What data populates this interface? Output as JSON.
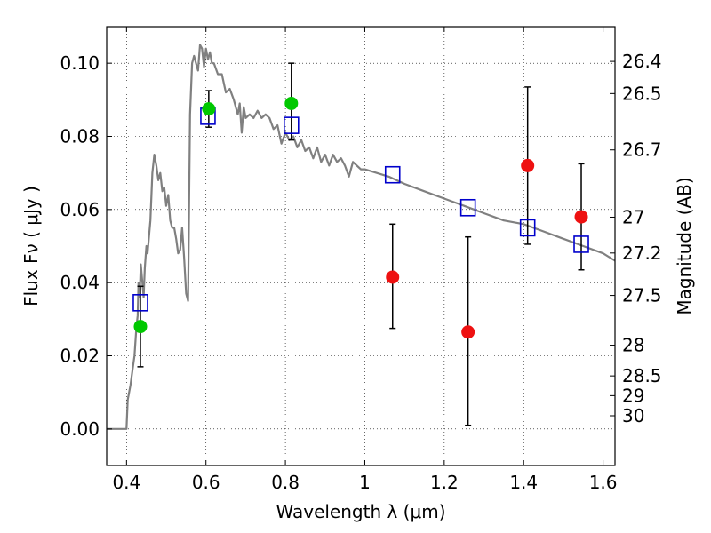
{
  "chart_data": {
    "type": "scatter",
    "xlabel": "Wavelength  λ (μm)",
    "ylabel": "Flux  Fν  ( μJy )",
    "ylabel_right": "Magnitude (AB)",
    "xlim": [
      0.35,
      1.63
    ],
    "ylim": [
      -0.01,
      0.11
    ],
    "grid": true,
    "x_ticks": [
      0.4,
      0.6,
      0.8,
      1.0,
      1.2,
      1.4,
      1.6
    ],
    "x_tick_labels": [
      "0.4",
      "0.6",
      "0.8",
      "1",
      "1.2",
      "1.4",
      "1.6"
    ],
    "y_ticks": [
      0.0,
      0.02,
      0.04,
      0.06,
      0.08,
      0.1
    ],
    "y_tick_labels": [
      "0.00",
      "0.02",
      "0.04",
      "0.06",
      "0.08",
      "0.10"
    ],
    "right_ticks": [
      {
        "label": "26.4",
        "flux": 0.1005
      },
      {
        "label": "26.5",
        "flux": 0.0917
      },
      {
        "label": "26.7",
        "flux": 0.0763
      },
      {
        "label": "27",
        "flux": 0.0579
      },
      {
        "label": "27.2",
        "flux": 0.0481
      },
      {
        "label": "27.5",
        "flux": 0.0365
      },
      {
        "label": "28",
        "flux": 0.0229
      },
      {
        "label": "28.5",
        "flux": 0.0145
      },
      {
        "label": "29",
        "flux": 0.0091
      },
      {
        "label": "30",
        "flux": 0.0036
      }
    ],
    "series": [
      {
        "kind": "line",
        "color": "#808080",
        "points": [
          [
            0.35,
            0.0
          ],
          [
            0.4,
            0.0
          ],
          [
            0.403,
            0.008
          ],
          [
            0.41,
            0.012
          ],
          [
            0.415,
            0.016
          ],
          [
            0.42,
            0.02
          ],
          [
            0.425,
            0.028
          ],
          [
            0.428,
            0.031
          ],
          [
            0.43,
            0.04
          ],
          [
            0.433,
            0.036
          ],
          [
            0.436,
            0.045
          ],
          [
            0.44,
            0.04
          ],
          [
            0.443,
            0.036
          ],
          [
            0.446,
            0.044
          ],
          [
            0.45,
            0.05
          ],
          [
            0.453,
            0.048
          ],
          [
            0.456,
            0.052
          ],
          [
            0.46,
            0.057
          ],
          [
            0.465,
            0.07
          ],
          [
            0.47,
            0.075
          ],
          [
            0.475,
            0.072
          ],
          [
            0.48,
            0.068
          ],
          [
            0.485,
            0.07
          ],
          [
            0.49,
            0.065
          ],
          [
            0.495,
            0.066
          ],
          [
            0.5,
            0.061
          ],
          [
            0.505,
            0.064
          ],
          [
            0.51,
            0.057
          ],
          [
            0.515,
            0.055
          ],
          [
            0.52,
            0.055
          ],
          [
            0.525,
            0.052
          ],
          [
            0.53,
            0.048
          ],
          [
            0.535,
            0.049
          ],
          [
            0.54,
            0.055
          ],
          [
            0.545,
            0.047
          ],
          [
            0.55,
            0.037
          ],
          [
            0.555,
            0.035
          ],
          [
            0.56,
            0.086
          ],
          [
            0.565,
            0.1
          ],
          [
            0.57,
            0.102
          ],
          [
            0.575,
            0.1
          ],
          [
            0.58,
            0.098
          ],
          [
            0.585,
            0.105
          ],
          [
            0.59,
            0.104
          ],
          [
            0.595,
            0.099
          ],
          [
            0.6,
            0.104
          ],
          [
            0.605,
            0.101
          ],
          [
            0.61,
            0.103
          ],
          [
            0.615,
            0.1
          ],
          [
            0.62,
            0.1
          ],
          [
            0.63,
            0.097
          ],
          [
            0.64,
            0.097
          ],
          [
            0.65,
            0.092
          ],
          [
            0.66,
            0.093
          ],
          [
            0.67,
            0.09
          ],
          [
            0.68,
            0.086
          ],
          [
            0.685,
            0.089
          ],
          [
            0.69,
            0.081
          ],
          [
            0.695,
            0.088
          ],
          [
            0.7,
            0.085
          ],
          [
            0.71,
            0.086
          ],
          [
            0.72,
            0.085
          ],
          [
            0.73,
            0.087
          ],
          [
            0.74,
            0.085
          ],
          [
            0.75,
            0.086
          ],
          [
            0.76,
            0.085
          ],
          [
            0.77,
            0.082
          ],
          [
            0.78,
            0.083
          ],
          [
            0.79,
            0.078
          ],
          [
            0.8,
            0.081
          ],
          [
            0.81,
            0.079
          ],
          [
            0.82,
            0.08
          ],
          [
            0.83,
            0.077
          ],
          [
            0.84,
            0.079
          ],
          [
            0.85,
            0.076
          ],
          [
            0.86,
            0.077
          ],
          [
            0.87,
            0.074
          ],
          [
            0.88,
            0.077
          ],
          [
            0.89,
            0.073
          ],
          [
            0.9,
            0.075
          ],
          [
            0.91,
            0.072
          ],
          [
            0.92,
            0.075
          ],
          [
            0.93,
            0.073
          ],
          [
            0.94,
            0.074
          ],
          [
            0.95,
            0.072
          ],
          [
            0.96,
            0.069
          ],
          [
            0.97,
            0.073
          ],
          [
            0.98,
            0.072
          ],
          [
            0.99,
            0.071
          ],
          [
            1.0,
            0.071
          ],
          [
            1.03,
            0.07
          ],
          [
            1.06,
            0.069
          ],
          [
            1.1,
            0.067
          ],
          [
            1.15,
            0.065
          ],
          [
            1.2,
            0.063
          ],
          [
            1.25,
            0.061
          ],
          [
            1.3,
            0.059
          ],
          [
            1.35,
            0.057
          ],
          [
            1.4,
            0.056
          ],
          [
            1.45,
            0.054
          ],
          [
            1.5,
            0.052
          ],
          [
            1.55,
            0.05
          ],
          [
            1.6,
            0.048
          ],
          [
            1.63,
            0.046
          ]
        ]
      },
      {
        "kind": "square",
        "color": "#0000cc",
        "points": [
          [
            0.435,
            0.0345
          ],
          [
            0.605,
            0.0855
          ],
          [
            0.815,
            0.083
          ],
          [
            1.07,
            0.0695
          ],
          [
            1.26,
            0.0605
          ],
          [
            1.41,
            0.055
          ],
          [
            1.545,
            0.0505
          ]
        ]
      },
      {
        "kind": "circle",
        "color": "#00c800",
        "points": [
          [
            0.435,
            0.028
          ],
          [
            0.607,
            0.0875
          ],
          [
            0.815,
            0.089
          ]
        ],
        "errors": [
          [
            0.011,
            0.011
          ],
          [
            0.005,
            0.005
          ],
          [
            0.01,
            0.011
          ]
        ]
      },
      {
        "kind": "circle",
        "color": "#ee1111",
        "points": [
          [
            1.07,
            0.0415
          ],
          [
            1.26,
            0.0265
          ],
          [
            1.41,
            0.072
          ],
          [
            1.545,
            0.058
          ]
        ],
        "errors": [
          [
            0.014,
            0.0145
          ],
          [
            0.0255,
            0.026
          ],
          [
            0.0215,
            0.0215
          ],
          [
            0.0145,
            0.0145
          ]
        ]
      }
    ]
  }
}
